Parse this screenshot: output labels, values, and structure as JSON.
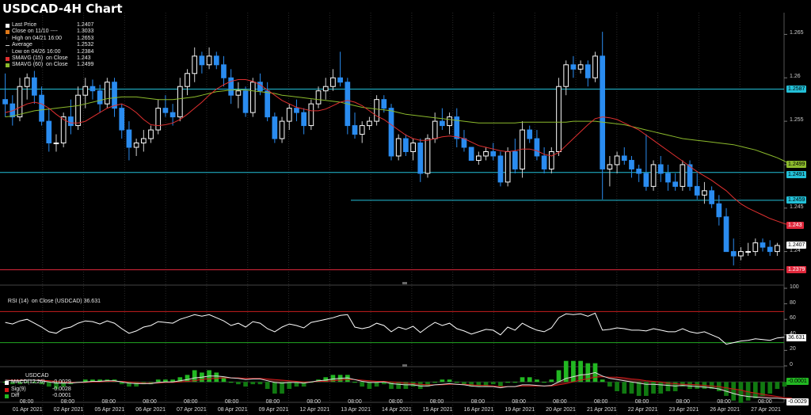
{
  "title": "USDCAD-4H Chart",
  "colors": {
    "up": "#ffffff",
    "down": "#2a8cf0",
    "sma15": "#e03030",
    "sma60": "#8cba2c",
    "cyan": "#23c0d8",
    "redline": "#e0283c",
    "macd": "#ffffff",
    "sig": "#d01818",
    "diff": "#22b822"
  },
  "legend": [
    {
      "label": "Last Price",
      "value": "1.2407",
      "icon": "square-white"
    },
    {
      "label": "Close on 11/10 ----",
      "value": "1.3033",
      "icon": "square-orange"
    },
    {
      "label": "High on 04/21 16:00",
      "value": "1.2653",
      "icon": "up-tick-icon"
    },
    {
      "label": "Average",
      "value": "1.2532",
      "icon": "dash-icon"
    },
    {
      "label": "Low on 04/26 16:00",
      "value": "1.2384",
      "icon": "down-tick-icon"
    },
    {
      "label": "SMAVG (15)  on Close",
      "value": "1.243",
      "icon": "square-red"
    },
    {
      "label": "SMAVG (60)  on Close",
      "value": "1.2499",
      "icon": "square-green"
    }
  ],
  "price_axis": {
    "ticks": [
      "1.265",
      "1.26",
      "1.255",
      "1.25",
      "1.245",
      "1.24"
    ],
    "labels": [
      {
        "text": "1.2587",
        "kind": "cyan"
      },
      {
        "text": "1.2499",
        "kind": "green"
      },
      {
        "text": "1.2491",
        "kind": "cyan"
      },
      {
        "text": "1.2459",
        "kind": "cyan"
      },
      {
        "text": "1.243",
        "kind": "red"
      },
      {
        "text": "1.2407",
        "kind": "white"
      },
      {
        "text": "1.2379",
        "kind": "red"
      }
    ]
  },
  "rsi_panel": {
    "legend": "RSI (14)  on Close (USDCAD) 36.631",
    "ticks": [
      "100",
      "80",
      "60",
      "40",
      "20",
      "0"
    ],
    "current": "36.631"
  },
  "macd_panel": {
    "symbol": "USDCAD",
    "legend": [
      {
        "label": "MACD(12,26)",
        "value": "-0.0029"
      },
      {
        "label": "Sig(9)",
        "value": "-0.0028"
      },
      {
        "label": "Diff",
        "value": "-0.0001"
      }
    ],
    "label_diff": "-0.0001",
    "label_macd": "-0.0029"
  },
  "x_axis": [
    {
      "time": "08:00",
      "date": "01 Apr 2021"
    },
    {
      "time": "08:00",
      "date": "02 Apr 2021"
    },
    {
      "time": "08:00",
      "date": "05 Apr 2021"
    },
    {
      "time": "08:00",
      "date": "06 Apr 2021"
    },
    {
      "time": "08:00",
      "date": "07 Apr 2021"
    },
    {
      "time": "08:00",
      "date": "08 Apr 2021"
    },
    {
      "time": "08:00",
      "date": "09 Apr 2021"
    },
    {
      "time": "08:00",
      "date": "12 Apr 2021"
    },
    {
      "time": "08:00",
      "date": "13 Apr 2021"
    },
    {
      "time": "08:00",
      "date": "14 Apr 2021"
    },
    {
      "time": "08:00",
      "date": "15 Apr 2021"
    },
    {
      "time": "08:00",
      "date": "16 Apr 2021"
    },
    {
      "time": "08:00",
      "date": "19 Apr 2021"
    },
    {
      "time": "08:00",
      "date": "20 Apr 2021"
    },
    {
      "time": "08:00",
      "date": "21 Apr 2021"
    },
    {
      "time": "08:00",
      "date": "22 Apr 2021"
    },
    {
      "time": "08:00",
      "date": "23 Apr 2021"
    },
    {
      "time": "08:00",
      "date": "26 Apr 2021"
    },
    {
      "time": "08:00",
      "date": "27 Apr 2021"
    }
  ],
  "chart_data": {
    "type": "candlestick",
    "ylim": [
      1.2365,
      1.2675
    ],
    "hlines": [
      {
        "value": 1.2587,
        "color": "cyan",
        "span": "full"
      },
      {
        "value": 1.2491,
        "color": "cyan",
        "span": "full"
      },
      {
        "value": 1.2459,
        "color": "cyan",
        "span": "partial"
      },
      {
        "value": 1.2379,
        "color": "red",
        "span": "full"
      }
    ],
    "candles": [
      [
        1.2575,
        1.2605,
        1.2555,
        1.257
      ],
      [
        1.257,
        1.258,
        1.2545,
        1.2555
      ],
      [
        1.2555,
        1.26,
        1.255,
        1.259
      ],
      [
        1.259,
        1.2605,
        1.2575,
        1.26
      ],
      [
        1.26,
        1.2608,
        1.257,
        1.258
      ],
      [
        1.258,
        1.259,
        1.2545,
        1.255
      ],
      [
        1.255,
        1.2565,
        1.2515,
        1.2525
      ],
      [
        1.2525,
        1.2535,
        1.2515,
        1.2525
      ],
      [
        1.2525,
        1.256,
        1.252,
        1.2555
      ],
      [
        1.2555,
        1.2575,
        1.2535,
        1.2545
      ],
      [
        1.2545,
        1.259,
        1.254,
        1.258
      ],
      [
        1.258,
        1.26,
        1.2565,
        1.259
      ],
      [
        1.259,
        1.2598,
        1.2575,
        1.2585
      ],
      [
        1.2585,
        1.2592,
        1.256,
        1.257
      ],
      [
        1.257,
        1.26,
        1.2565,
        1.2595
      ],
      [
        1.2595,
        1.26,
        1.2555,
        1.2565
      ],
      [
        1.2565,
        1.257,
        1.253,
        1.254
      ],
      [
        1.254,
        1.255,
        1.2505,
        1.252
      ],
      [
        1.252,
        1.253,
        1.251,
        1.2525
      ],
      [
        1.2525,
        1.254,
        1.2515,
        1.253
      ],
      [
        1.253,
        1.2545,
        1.2525,
        1.254
      ],
      [
        1.254,
        1.2575,
        1.2535,
        1.2565
      ],
      [
        1.2565,
        1.258,
        1.2555,
        1.256
      ],
      [
        1.256,
        1.257,
        1.2545,
        1.2555
      ],
      [
        1.2555,
        1.26,
        1.255,
        1.259
      ],
      [
        1.259,
        1.261,
        1.258,
        1.2605
      ],
      [
        1.2605,
        1.2635,
        1.2595,
        1.2625
      ],
      [
        1.2625,
        1.263,
        1.2605,
        1.2615
      ],
      [
        1.2615,
        1.2635,
        1.261,
        1.2625
      ],
      [
        1.2625,
        1.263,
        1.261,
        1.2615
      ],
      [
        1.2615,
        1.2625,
        1.259,
        1.26
      ],
      [
        1.26,
        1.261,
        1.257,
        1.258
      ],
      [
        1.258,
        1.2595,
        1.2565,
        1.2585
      ],
      [
        1.2585,
        1.259,
        1.2555,
        1.256
      ],
      [
        1.256,
        1.26,
        1.2555,
        1.2595
      ],
      [
        1.2595,
        1.2605,
        1.258,
        1.2585
      ],
      [
        1.2585,
        1.2595,
        1.255,
        1.2555
      ],
      [
        1.2555,
        1.256,
        1.2525,
        1.253
      ],
      [
        1.253,
        1.2555,
        1.2525,
        1.255
      ],
      [
        1.255,
        1.257,
        1.254,
        1.2565
      ],
      [
        1.2565,
        1.2575,
        1.255,
        1.256
      ],
      [
        1.256,
        1.2565,
        1.2535,
        1.2545
      ],
      [
        1.2545,
        1.2575,
        1.254,
        1.257
      ],
      [
        1.257,
        1.259,
        1.2565,
        1.2585
      ],
      [
        1.2585,
        1.26,
        1.2575,
        1.259
      ],
      [
        1.259,
        1.261,
        1.2585,
        1.26
      ],
      [
        1.26,
        1.263,
        1.259,
        1.2595
      ],
      [
        1.2595,
        1.26,
        1.2535,
        1.2545
      ],
      [
        1.2545,
        1.256,
        1.253,
        1.2535
      ],
      [
        1.2535,
        1.255,
        1.2525,
        1.2545
      ],
      [
        1.2545,
        1.2555,
        1.254,
        1.255
      ],
      [
        1.255,
        1.258,
        1.2545,
        1.2575
      ],
      [
        1.2575,
        1.258,
        1.256,
        1.2565
      ],
      [
        1.2565,
        1.257,
        1.2505,
        1.251
      ],
      [
        1.251,
        1.2535,
        1.2505,
        1.253
      ],
      [
        1.253,
        1.2535,
        1.251,
        1.2515
      ],
      [
        1.2515,
        1.253,
        1.2505,
        1.2525
      ],
      [
        1.2525,
        1.253,
        1.248,
        1.249
      ],
      [
        1.249,
        1.2535,
        1.2485,
        1.253
      ],
      [
        1.253,
        1.256,
        1.2525,
        1.255
      ],
      [
        1.255,
        1.2565,
        1.254,
        1.2545
      ],
      [
        1.2545,
        1.256,
        1.2535,
        1.2555
      ],
      [
        1.2555,
        1.2565,
        1.252,
        1.253
      ],
      [
        1.253,
        1.254,
        1.2515,
        1.252
      ],
      [
        1.252,
        1.252,
        1.2505,
        1.2505
      ],
      [
        1.2505,
        1.2515,
        1.25,
        1.251
      ],
      [
        1.251,
        1.252,
        1.2505,
        1.2515
      ],
      [
        1.2515,
        1.2525,
        1.2505,
        1.251
      ],
      [
        1.251,
        1.2515,
        1.2475,
        1.248
      ],
      [
        1.248,
        1.252,
        1.2475,
        1.2515
      ],
      [
        1.2515,
        1.253,
        1.249,
        1.2495
      ],
      [
        1.2495,
        1.255,
        1.2485,
        1.254
      ],
      [
        1.254,
        1.2545,
        1.2525,
        1.253
      ],
      [
        1.253,
        1.254,
        1.2505,
        1.251
      ],
      [
        1.251,
        1.252,
        1.249,
        1.2495
      ],
      [
        1.2495,
        1.252,
        1.249,
        1.2515
      ],
      [
        1.2515,
        1.26,
        1.251,
        1.259
      ],
      [
        1.259,
        1.262,
        1.258,
        1.2615
      ],
      [
        1.2615,
        1.2625,
        1.26,
        1.261
      ],
      [
        1.261,
        1.262,
        1.2605,
        1.2615
      ],
      [
        1.2615,
        1.262,
        1.259,
        1.26
      ],
      [
        1.26,
        1.263,
        1.2595,
        1.2625
      ],
      [
        1.2625,
        1.2653,
        1.246,
        1.2495
      ],
      [
        1.2495,
        1.251,
        1.2475,
        1.25
      ],
      [
        1.25,
        1.2515,
        1.249,
        1.251
      ],
      [
        1.251,
        1.252,
        1.25,
        1.2505
      ],
      [
        1.2505,
        1.251,
        1.2485,
        1.2495
      ],
      [
        1.2495,
        1.25,
        1.248,
        1.249
      ],
      [
        1.249,
        1.2535,
        1.247,
        1.2475
      ],
      [
        1.2475,
        1.2505,
        1.247,
        1.25
      ],
      [
        1.25,
        1.251,
        1.248,
        1.249
      ],
      [
        1.249,
        1.25,
        1.247,
        1.248
      ],
      [
        1.248,
        1.249,
        1.247,
        1.2475
      ],
      [
        1.2475,
        1.2505,
        1.247,
        1.25
      ],
      [
        1.25,
        1.2505,
        1.247,
        1.2475
      ],
      [
        1.2475,
        1.249,
        1.246,
        1.2465
      ],
      [
        1.2465,
        1.248,
        1.2455,
        1.247
      ],
      [
        1.247,
        1.2475,
        1.245,
        1.2455
      ],
      [
        1.2455,
        1.2465,
        1.243,
        1.244
      ],
      [
        1.244,
        1.245,
        1.24,
        1.24
      ],
      [
        1.24,
        1.2415,
        1.2384,
        1.2395
      ],
      [
        1.2395,
        1.2405,
        1.239,
        1.24
      ],
      [
        1.24,
        1.241,
        1.2395,
        1.24
      ],
      [
        1.24,
        1.2415,
        1.2395,
        1.241
      ],
      [
        1.241,
        1.2415,
        1.24,
        1.2405
      ],
      [
        1.2405,
        1.2413,
        1.2395,
        1.24
      ],
      [
        1.24,
        1.241,
        1.2395,
        1.2407
      ]
    ],
    "sma15": [
      1.256,
      1.2562,
      1.2566,
      1.257,
      1.2572,
      1.257,
      1.2565,
      1.2558,
      1.2552,
      1.2548,
      1.2548,
      1.255,
      1.2555,
      1.256,
      1.2565,
      1.2568,
      1.257,
      1.2566,
      1.256,
      1.2552,
      1.2546,
      1.2545,
      1.2546,
      1.2548,
      1.2552,
      1.2558,
      1.2565,
      1.2572,
      1.258,
      1.2587,
      1.2592,
      1.2596,
      1.2598,
      1.2598,
      1.2596,
      1.2592,
      1.2586,
      1.258,
      1.2574,
      1.257,
      1.2566,
      1.2564,
      1.2562,
      1.2562,
      1.2564,
      1.2568,
      1.2572,
      1.2574,
      1.2572,
      1.2568,
      1.2562,
      1.2556,
      1.2552,
      1.2546,
      1.254,
      1.2534,
      1.253,
      1.2528,
      1.2528,
      1.253,
      1.2532,
      1.2533,
      1.2532,
      1.253,
      1.2526,
      1.2522,
      1.252,
      1.2518,
      1.2516,
      1.2515,
      1.2516,
      1.2518,
      1.2518,
      1.2516,
      1.2512,
      1.251,
      1.2514,
      1.2522,
      1.253,
      1.2538,
      1.2546,
      1.2553,
      1.2555,
      1.2554,
      1.2552,
      1.2548,
      1.2544,
      1.254,
      1.2534,
      1.2528,
      1.2522,
      1.2516,
      1.251,
      1.2504,
      1.2498,
      1.2492,
      1.2487,
      1.2482,
      1.2476,
      1.247,
      1.2462,
      1.2455,
      1.245,
      1.2446,
      1.2442,
      1.2438,
      1.2435,
      1.2432,
      1.243
    ],
    "sma60": [
      1.2555,
      1.2556,
      1.2558,
      1.256,
      1.2562,
      1.2563,
      1.2564,
      1.2565,
      1.2566,
      1.2567,
      1.2568,
      1.257,
      1.2572,
      1.2574,
      1.2576,
      1.2577,
      1.2578,
      1.2578,
      1.2578,
      1.2577,
      1.2576,
      1.2575,
      1.2575,
      1.2575,
      1.2576,
      1.2577,
      1.2578,
      1.258,
      1.2582,
      1.2584,
      1.2585,
      1.2586,
      1.2586,
      1.2586,
      1.2585,
      1.2584,
      1.2583,
      1.2582,
      1.258,
      1.2579,
      1.2578,
      1.2577,
      1.2576,
      1.2575,
      1.2574,
      1.2573,
      1.2572,
      1.257,
      1.2568,
      1.2566,
      1.2565,
      1.2564,
      1.2563,
      1.2562,
      1.256,
      1.2558,
      1.2557,
      1.2556,
      1.2555,
      1.2554,
      1.2553,
      1.2552,
      1.2551,
      1.255,
      1.2549,
      1.2548,
      1.2548,
      1.2548,
      1.2548,
      1.2548,
      1.2548,
      1.2549,
      1.2549,
      1.2549,
      1.2549,
      1.2549,
      1.2549,
      1.2549,
      1.255,
      1.255,
      1.255,
      1.255,
      1.2549,
      1.2548,
      1.2547,
      1.2546,
      1.2544,
      1.2542,
      1.254,
      1.2538,
      1.2536,
      1.2534,
      1.2532,
      1.253,
      1.2529,
      1.2528,
      1.2527,
      1.2526,
      1.2525,
      1.2524,
      1.2523,
      1.2521,
      1.2519,
      1.2517,
      1.2514,
      1.2511,
      1.2508,
      1.2504,
      1.2499
    ],
    "rsi": [
      56,
      54,
      58,
      60,
      55,
      50,
      44,
      42,
      48,
      50,
      55,
      58,
      57,
      54,
      58,
      55,
      48,
      42,
      45,
      50,
      52,
      57,
      56,
      55,
      60,
      63,
      66,
      64,
      66,
      62,
      58,
      52,
      55,
      50,
      57,
      55,
      48,
      44,
      50,
      54,
      52,
      49,
      56,
      58,
      60,
      62,
      65,
      66,
      50,
      48,
      50,
      55,
      52,
      44,
      50,
      47,
      51,
      43,
      50,
      56,
      52,
      55,
      48,
      45,
      41,
      44,
      47,
      46,
      40,
      50,
      46,
      55,
      50,
      46,
      44,
      49,
      62,
      67,
      66,
      67,
      64,
      68,
      46,
      47,
      49,
      48,
      46,
      46,
      45,
      48,
      46,
      44,
      44,
      48,
      44,
      42,
      44,
      40,
      36,
      28,
      30,
      32,
      33,
      35,
      34,
      33,
      36,
      37
    ],
    "rsi_ylim": [
      0,
      100
    ],
    "rsi_levels": [
      70,
      30
    ],
    "macd": [
      0.0003,
      0.0002,
      0.0002,
      0.0003,
      0.0003,
      0.0002,
      0.0,
      -0.0002,
      -0.0002,
      -0.0002,
      -0.0001,
      0.0,
      0.0001,
      0.0001,
      0.0002,
      0.0002,
      0.0,
      -0.0002,
      -0.0003,
      -0.0003,
      -0.0003,
      -0.0001,
      0.0,
      0.0,
      0.0002,
      0.0004,
      0.0007,
      0.0008,
      0.001,
      0.001,
      0.0009,
      0.0007,
      0.0006,
      0.0004,
      0.0005,
      0.0005,
      0.0002,
      -0.0001,
      -0.0002,
      -0.0001,
      -0.0001,
      -0.0002,
      0.0,
      0.0002,
      0.0003,
      0.0005,
      0.0006,
      0.0007,
      0.0004,
      0.0001,
      -0.0001,
      -0.0001,
      0.0,
      -0.0003,
      -0.0004,
      -0.0005,
      -0.0005,
      -0.0007,
      -0.0007,
      -0.0005,
      -0.0004,
      -0.0003,
      -0.0004,
      -0.0005,
      -0.0007,
      -0.0008,
      -0.0008,
      -0.0008,
      -0.001,
      -0.0008,
      -0.0008,
      -0.0005,
      -0.0005,
      -0.0006,
      -0.0007,
      -0.0006,
      0.0,
      0.0006,
      0.0009,
      0.0012,
      0.0013,
      0.0016,
      0.001,
      0.0006,
      0.0004,
      0.0002,
      0.0,
      -0.0002,
      -0.0004,
      -0.0004,
      -0.0005,
      -0.0006,
      -0.0007,
      -0.0006,
      -0.0007,
      -0.0008,
      -0.0009,
      -0.001,
      -0.0012,
      -0.0016,
      -0.002,
      -0.0023,
      -0.0025,
      -0.0026,
      -0.0027,
      -0.0028,
      -0.0028,
      -0.0029,
      -0.0029
    ],
    "signal": [
      0.0003,
      0.0003,
      0.0003,
      0.0003,
      0.0003,
      0.0003,
      0.0002,
      0.0001,
      0.0,
      -0.0001,
      -0.0001,
      -0.0001,
      0.0,
      0.0,
      0.0001,
      0.0001,
      0.0001,
      0.0,
      -0.0001,
      -0.0002,
      -0.0002,
      -0.0002,
      -0.0001,
      -0.0001,
      0.0,
      0.0001,
      0.0002,
      0.0004,
      0.0005,
      0.0006,
      0.0007,
      0.0007,
      0.0007,
      0.0006,
      0.0006,
      0.0006,
      0.0005,
      0.0004,
      0.0003,
      0.0002,
      0.0001,
      0.0,
      0.0,
      0.0001,
      0.0001,
      0.0002,
      0.0003,
      0.0004,
      0.0004,
      0.0003,
      0.0002,
      0.0001,
      0.0001,
      0.0,
      -0.0001,
      -0.0002,
      -0.0003,
      -0.0004,
      -0.0005,
      -0.0005,
      -0.0005,
      -0.0004,
      -0.0004,
      -0.0004,
      -0.0005,
      -0.0006,
      -0.0006,
      -0.0007,
      -0.0008,
      -0.0008,
      -0.0008,
      -0.0007,
      -0.0007,
      -0.0007,
      -0.0007,
      -0.0007,
      -0.0005,
      -0.0003,
      0.0,
      0.0003,
      0.0005,
      0.0008,
      0.0009,
      0.0008,
      0.0008,
      0.0007,
      0.0005,
      0.0004,
      0.0002,
      0.0001,
      0.0,
      -0.0002,
      -0.0003,
      -0.0004,
      -0.0004,
      -0.0005,
      -0.0006,
      -0.0007,
      -0.0008,
      -0.001,
      -0.0012,
      -0.0014,
      -0.0017,
      -0.0019,
      -0.0021,
      -0.0023,
      -0.0025,
      -0.0027,
      -0.0028
    ],
    "macd_ylim": [
      -0.0035,
      0.0022
    ]
  }
}
